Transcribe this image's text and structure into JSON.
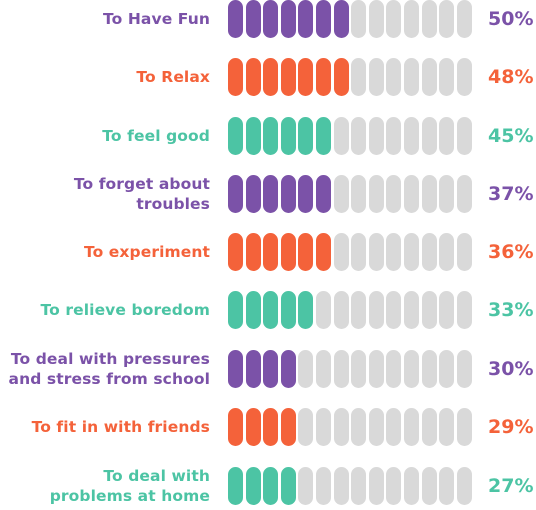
{
  "colors": {
    "purple": "#7b52a8",
    "orange": "#f4623a",
    "teal": "#4cc4a4",
    "empty": "#d9d9d9"
  },
  "segments_total": 14,
  "chart_data": {
    "type": "bar",
    "categories": [
      "To Have Fun",
      "To Relax",
      "To feel good",
      "To forget about troubles",
      "To experiment",
      "To relieve boredom",
      "To deal with pressures\nand stress from school",
      "To fit in with friends",
      "To deal with\nproblems at home"
    ],
    "values": [
      50,
      48,
      45,
      37,
      36,
      33,
      30,
      29,
      27
    ],
    "value_labels": [
      "50%",
      "48%",
      "45%",
      "37%",
      "36%",
      "33%",
      "30%",
      "29%",
      "27%"
    ],
    "filled_segments": [
      7,
      7,
      6,
      6,
      6,
      5,
      4,
      4,
      4
    ],
    "row_colors": [
      "purple",
      "orange",
      "teal",
      "purple",
      "orange",
      "teal",
      "purple",
      "orange",
      "teal"
    ],
    "unit": "%",
    "ylim": [
      0,
      100
    ]
  }
}
